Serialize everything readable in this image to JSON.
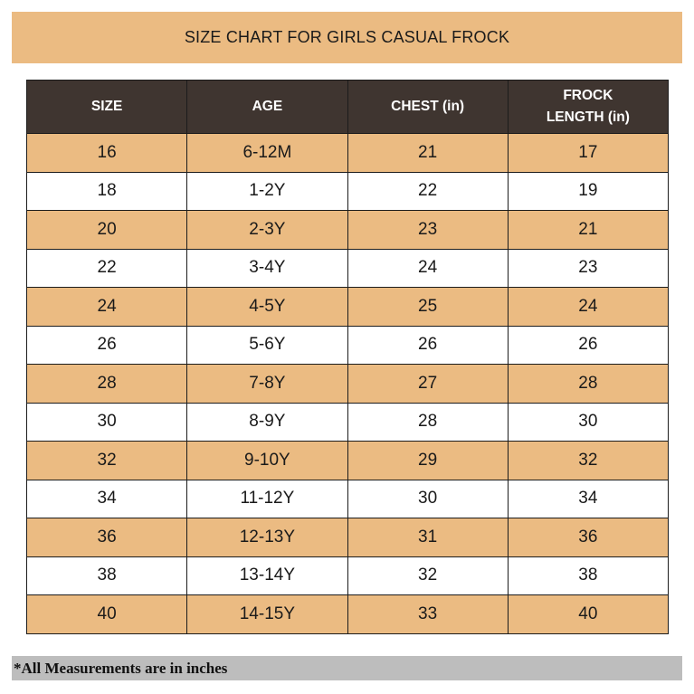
{
  "title": "SIZE CHART FOR GIRLS CASUAL FROCK",
  "headers": {
    "size": "SIZE",
    "age": "AGE",
    "chest": "CHEST (in)",
    "frock_length_line1": "FROCK",
    "frock_length_line2": "LENGTH (in)"
  },
  "rows": [
    {
      "size": "16",
      "age": "6-12M",
      "chest": "21",
      "length": "17"
    },
    {
      "size": "18",
      "age": "1-2Y",
      "chest": "22",
      "length": "19"
    },
    {
      "size": "20",
      "age": "2-3Y",
      "chest": "23",
      "length": "21"
    },
    {
      "size": "22",
      "age": "3-4Y",
      "chest": "24",
      "length": "23"
    },
    {
      "size": "24",
      "age": "4-5Y",
      "chest": "25",
      "length": "24"
    },
    {
      "size": "26",
      "age": "5-6Y",
      "chest": "26",
      "length": "26"
    },
    {
      "size": "28",
      "age": "7-8Y",
      "chest": "27",
      "length": "28"
    },
    {
      "size": "30",
      "age": "8-9Y",
      "chest": "28",
      "length": "30"
    },
    {
      "size": "32",
      "age": "9-10Y",
      "chest": "29",
      "length": "32"
    },
    {
      "size": "34",
      "age": "11-12Y",
      "chest": "30",
      "length": "34"
    },
    {
      "size": "36",
      "age": "12-13Y",
      "chest": "31",
      "length": "36"
    },
    {
      "size": "38",
      "age": "13-14Y",
      "chest": "32",
      "length": "38"
    },
    {
      "size": "40",
      "age": "14-15Y",
      "chest": "33",
      "length": "40"
    }
  ],
  "footer_note": "*All Measurements are in inches",
  "colors": {
    "accent": "#ebbb82",
    "header_bg": "#3f3530",
    "footer_bg": "#bdbdbd"
  }
}
